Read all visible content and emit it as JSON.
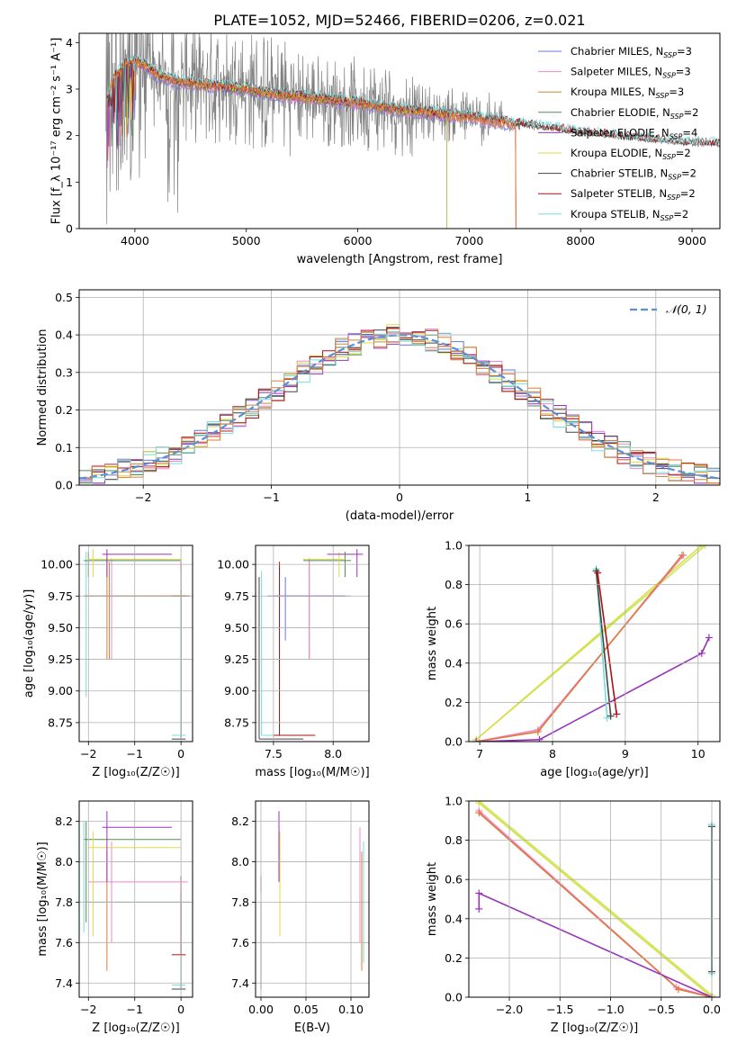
{
  "figure": {
    "title": "PLATE=1052, MJD=52466, FIBERID=0206, z=0.021"
  },
  "colors": {
    "chabrier_miles": "#6677dd",
    "salpeter_miles": "#ee88cc",
    "kroupa_miles": "#cc8833",
    "chabrier_elodie": "#558855",
    "salpeter_elodie": "#9933bb",
    "kroupa_elodie": "#dddd44",
    "chabrier_stelib": "#444444",
    "salpeter_stelib": "#aa1111",
    "kroupa_stelib": "#77dddd",
    "data": "#808080",
    "orange": "#e07838",
    "lime": "#c8e860",
    "normal_curve": "#5b8fd8"
  },
  "chart_data": [
    {
      "id": "spectrum",
      "type": "line",
      "title": "PLATE=1052, MJD=52466, FIBERID=0206, z=0.021",
      "xlabel": "wavelength [Angstrom, rest frame]",
      "ylabel": "Flux [f_λ 10⁻¹⁷ erg cm⁻² s⁻¹ A⁻¹]",
      "xlim": [
        3500,
        9250
      ],
      "ylim": [
        0,
        4.2
      ],
      "xticks": [
        4000,
        5000,
        6000,
        7000,
        8000,
        9000
      ],
      "yticks": [
        0,
        1,
        2,
        3,
        4
      ],
      "grid": false,
      "legend_position": "top-right",
      "legend": [
        {
          "label": "Chabrier MILES, N",
          "sub": "SSP",
          "suffix": "=3",
          "color_key": "chabrier_miles"
        },
        {
          "label": "Salpeter MILES, N",
          "sub": "SSP",
          "suffix": "=3",
          "color_key": "salpeter_miles"
        },
        {
          "label": "Kroupa MILES, N",
          "sub": "SSP",
          "suffix": "=3",
          "color_key": "kroupa_miles"
        },
        {
          "label": "Chabrier ELODIE, N",
          "sub": "SSP",
          "suffix": "=2",
          "color_key": "chabrier_elodie"
        },
        {
          "label": "Salpeter ELODIE, N",
          "sub": "SSP",
          "suffix": "=4",
          "color_key": "salpeter_elodie"
        },
        {
          "label": "Kroupa ELODIE, N",
          "sub": "SSP",
          "suffix": "=2",
          "color_key": "kroupa_elodie"
        },
        {
          "label": "Chabrier STELIB, N",
          "sub": "SSP",
          "suffix": "=2",
          "color_key": "chabrier_stelib"
        },
        {
          "label": "Salpeter STELIB, N",
          "sub": "SSP",
          "suffix": "=2",
          "color_key": "salpeter_stelib"
        },
        {
          "label": "Kroupa STELIB, N",
          "sub": "SSP",
          "suffix": "=2",
          "color_key": "kroupa_stelib"
        }
      ],
      "model_continuum": {
        "x": [
          3750,
          3800,
          3900,
          4000,
          4100,
          4200,
          4400,
          4600,
          4800,
          5000,
          5200,
          5400,
          5600,
          5800,
          6000,
          6200,
          6400,
          6600,
          6800,
          7000,
          7200,
          7400,
          7600,
          7800,
          8000,
          8200,
          8400,
          8600,
          8800,
          9000,
          9250
        ],
        "y": [
          2.8,
          3.2,
          3.5,
          3.6,
          3.5,
          3.3,
          3.15,
          3.1,
          3.05,
          3.0,
          2.9,
          2.85,
          2.8,
          2.75,
          2.7,
          2.62,
          2.55,
          2.5,
          2.45,
          2.4,
          2.32,
          2.25,
          2.18,
          2.12,
          2.05,
          2.0,
          1.95,
          1.9,
          1.85,
          1.82,
          1.8
        ]
      }
    },
    {
      "id": "residuals",
      "type": "bar",
      "xlabel": "(data-model)/error",
      "ylabel": "Normed distribution",
      "xlim": [
        -2.5,
        2.5
      ],
      "ylim": [
        0,
        0.52
      ],
      "xticks": [
        -2,
        -1,
        0,
        1,
        2
      ],
      "yticks": [
        0.0,
        0.1,
        0.2,
        0.3,
        0.4,
        0.5
      ],
      "grid": true,
      "legend_position": "top-right",
      "legend": [
        {
          "label": "𝒩(0, 1)",
          "color_key": "normal_curve"
        }
      ],
      "bin_width": 0.1
    },
    {
      "id": "age_vs_z",
      "type": "scatter",
      "xlabel": "Z [log₁₀(Z/Z☉)]",
      "ylabel": "age  [log₁₀(age/yr)]",
      "xlim": [
        -2.2,
        0.25
      ],
      "ylim": [
        8.6,
        10.15
      ],
      "xticks": [
        -2,
        -1,
        0
      ],
      "yticks": [
        8.75,
        9.0,
        9.25,
        9.5,
        9.75,
        10.0
      ],
      "grid": true
    },
    {
      "id": "age_vs_mass",
      "type": "scatter",
      "xlabel": "mass [log₁₀(M/M☉)]",
      "ylabel": "",
      "xlim": [
        7.35,
        8.3
      ],
      "ylim": [
        8.6,
        10.15
      ],
      "xticks": [
        7.5,
        8.0
      ],
      "yticks": [
        8.75,
        9.0,
        9.25,
        9.5,
        9.75,
        10.0
      ],
      "grid": true
    },
    {
      "id": "weight_vs_age",
      "type": "line",
      "xlabel": "age  [log₁₀(age/yr)]",
      "ylabel": "mass weight",
      "xlim": [
        6.85,
        10.3
      ],
      "ylim": [
        0,
        1.0
      ],
      "xticks": [
        7,
        8,
        9,
        10
      ],
      "yticks": [
        0.0,
        0.2,
        0.4,
        0.6,
        0.8,
        1.0
      ],
      "grid": true,
      "series": [
        {
          "color_key": "lime",
          "x": [
            6.95,
            10.1
          ],
          "y": [
            0.01,
            1.0
          ]
        },
        {
          "color_key": "kroupa_elodie",
          "x": [
            6.95,
            10.05
          ],
          "y": [
            0.01,
            1.0
          ]
        },
        {
          "color_key": "salpeter_miles",
          "x": [
            6.95,
            7.8,
            9.8
          ],
          "y": [
            0.0,
            0.06,
            0.95
          ]
        },
        {
          "color_key": "orange",
          "x": [
            6.95,
            7.8,
            9.78
          ],
          "y": [
            0.0,
            0.05,
            0.95
          ]
        },
        {
          "color_key": "salpeter_elodie",
          "x": [
            6.95,
            7.82,
            10.05,
            10.15
          ],
          "y": [
            0.0,
            0.01,
            0.45,
            0.53
          ]
        },
        {
          "color_key": "kroupa_stelib",
          "x": [
            8.6,
            8.75
          ],
          "y": [
            0.88,
            0.12
          ]
        },
        {
          "color_key": "chabrier_stelib",
          "x": [
            8.6,
            8.8
          ],
          "y": [
            0.87,
            0.13
          ]
        },
        {
          "color_key": "salpeter_stelib",
          "x": [
            8.62,
            8.88
          ],
          "y": [
            0.86,
            0.14
          ]
        }
      ]
    },
    {
      "id": "mass_vs_z",
      "type": "scatter",
      "xlabel": "Z [log₁₀(Z/Z☉)]",
      "ylabel": "mass [log₁₀(M/M☉)]",
      "xlim": [
        -2.2,
        0.25
      ],
      "ylim": [
        7.33,
        8.3
      ],
      "xticks": [
        -2,
        -1,
        0
      ],
      "yticks": [
        7.4,
        7.6,
        7.8,
        8.0,
        8.2
      ],
      "grid": true
    },
    {
      "id": "mass_vs_ebv",
      "type": "scatter",
      "xlabel": "E(B-V)",
      "ylabel": "",
      "xlim": [
        -0.006,
        0.12
      ],
      "ylim": [
        7.33,
        8.3
      ],
      "xticks": [
        0.0,
        0.05,
        0.1
      ],
      "yticks": [
        7.4,
        7.6,
        7.8,
        8.0,
        8.2
      ],
      "grid": true
    },
    {
      "id": "weight_vs_z",
      "type": "line",
      "xlabel": "Z [log₁₀(Z/Z☉)]",
      "ylabel": "mass weight",
      "xlim": [
        -2.4,
        0.08
      ],
      "ylim": [
        0,
        1.0
      ],
      "xticks": [
        -2.0,
        -1.5,
        -1.0,
        -0.5,
        0.0
      ],
      "yticks": [
        0.0,
        0.2,
        0.4,
        0.6,
        0.8,
        1.0
      ],
      "grid": true,
      "series": [
        {
          "color_key": "lime",
          "x": [
            -2.3,
            0.0
          ],
          "y": [
            1.0,
            0.01
          ]
        },
        {
          "color_key": "kroupa_elodie",
          "x": [
            -2.3,
            0.0
          ],
          "y": [
            0.99,
            0.0
          ]
        },
        {
          "color_key": "salpeter_miles",
          "x": [
            -2.3,
            -0.35,
            0.0
          ],
          "y": [
            0.95,
            0.05,
            0.0
          ]
        },
        {
          "color_key": "orange",
          "x": [
            -2.3,
            -0.33,
            0.0
          ],
          "y": [
            0.94,
            0.04,
            0.0
          ]
        },
        {
          "color_key": "salpeter_elodie",
          "x": [
            -2.3,
            -2.3,
            0.0
          ],
          "y": [
            0.45,
            0.53,
            0.0
          ]
        },
        {
          "color_key": "kroupa_stelib",
          "x": [
            0.0,
            0.0
          ],
          "y": [
            0.12,
            0.88
          ]
        },
        {
          "color_key": "chabrier_stelib",
          "x": [
            0.0,
            0.0
          ],
          "y": [
            0.13,
            0.87
          ]
        }
      ]
    }
  ]
}
